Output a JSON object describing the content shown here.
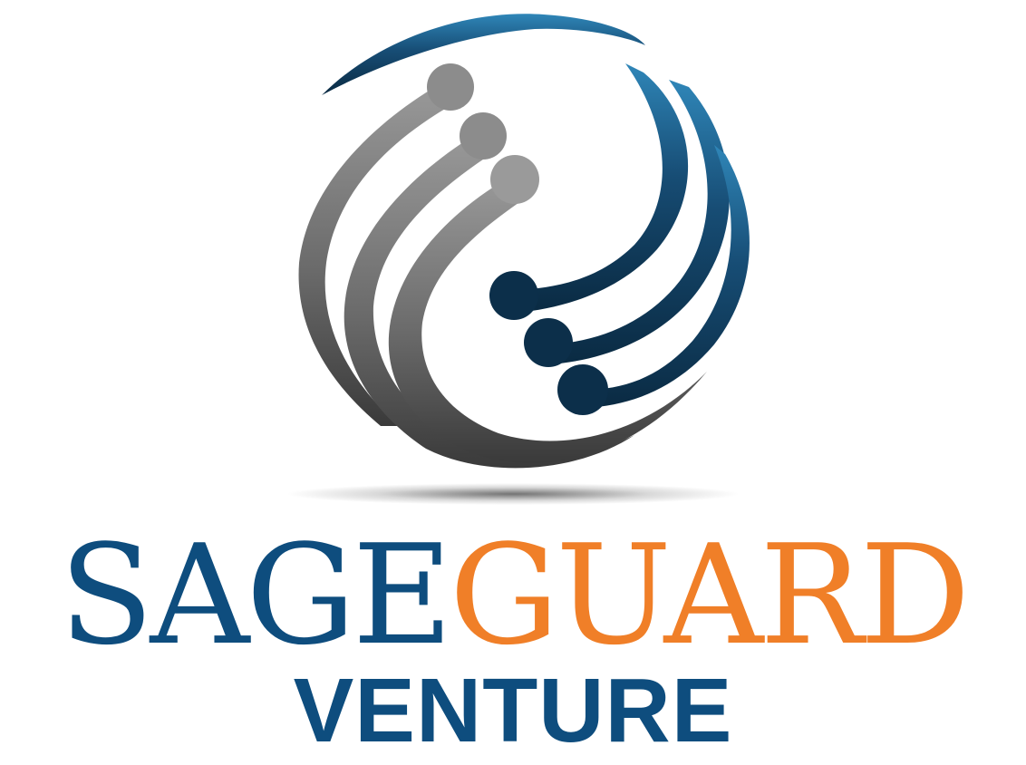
{
  "logo": {
    "word_part_1": "SAGE",
    "word_part_2": "GUARD",
    "tagline": "VENTURE",
    "icon_name": "globe-swirl-icon",
    "colors": {
      "blue": "#0e4d7e",
      "orange": "#f07f28",
      "gray": "#6e6e6e",
      "navy": "#0c2f4a"
    }
  }
}
